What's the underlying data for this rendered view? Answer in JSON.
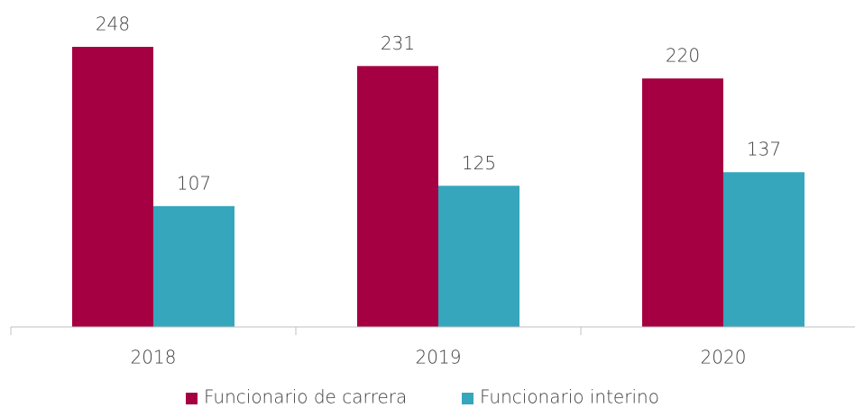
{
  "chart_data": {
    "type": "bar",
    "categories": [
      "2018",
      "2019",
      "2020"
    ],
    "series": [
      {
        "name": "Funcionario de carrera",
        "color": "#a50041",
        "values": [
          248,
          231,
          220
        ]
      },
      {
        "name": "Funcionario interino",
        "color": "#36a6bd",
        "values": [
          107,
          125,
          137
        ]
      }
    ],
    "legend": "bottom"
  }
}
